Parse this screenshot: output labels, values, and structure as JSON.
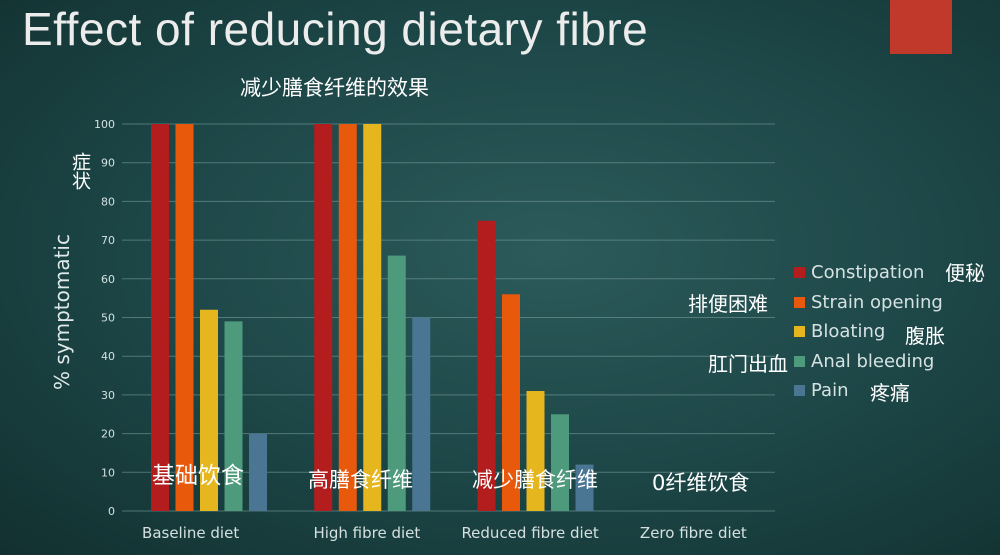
{
  "slide": {
    "title": "Effect of reducing dietary fibre",
    "subtitle": "减少膳食纤维的效果",
    "accent_color": "#c0392b",
    "ylabel_cn": "症状"
  },
  "category_annotations_cn": [
    "基础饮食",
    "高膳食纤维",
    "减少膳食纤维",
    "0纤维饮食"
  ],
  "legend_annotations_cn": [
    "便秘",
    "排便困难",
    "腹胀",
    "肛门出血",
    "疼痛"
  ],
  "chart_data": {
    "type": "bar",
    "title": "Effect of reducing dietary fibre",
    "ylabel": "% symptomatic",
    "xlabel": "",
    "ylim": [
      0,
      100
    ],
    "yticks": [
      0,
      10,
      20,
      30,
      40,
      50,
      60,
      70,
      80,
      90,
      100
    ],
    "grid": true,
    "legend_position": "right",
    "categories": [
      "Baseline diet",
      "High fibre diet",
      "Reduced fibre diet",
      "Zero fibre diet"
    ],
    "series": [
      {
        "name": "Constipation",
        "color": "#b31d1d",
        "values": [
          100,
          100,
          75,
          0
        ]
      },
      {
        "name": "Strain opening",
        "color": "#e8590c",
        "values": [
          100,
          100,
          56,
          0
        ]
      },
      {
        "name": "Bloating",
        "color": "#e6b61e",
        "values": [
          52,
          100,
          31,
          0
        ]
      },
      {
        "name": "Anal bleeding",
        "color": "#4e9a7c",
        "values": [
          49,
          66,
          25,
          0
        ]
      },
      {
        "name": "Pain",
        "color": "#4a7693",
        "values": [
          20,
          50,
          12,
          0
        ]
      }
    ]
  }
}
